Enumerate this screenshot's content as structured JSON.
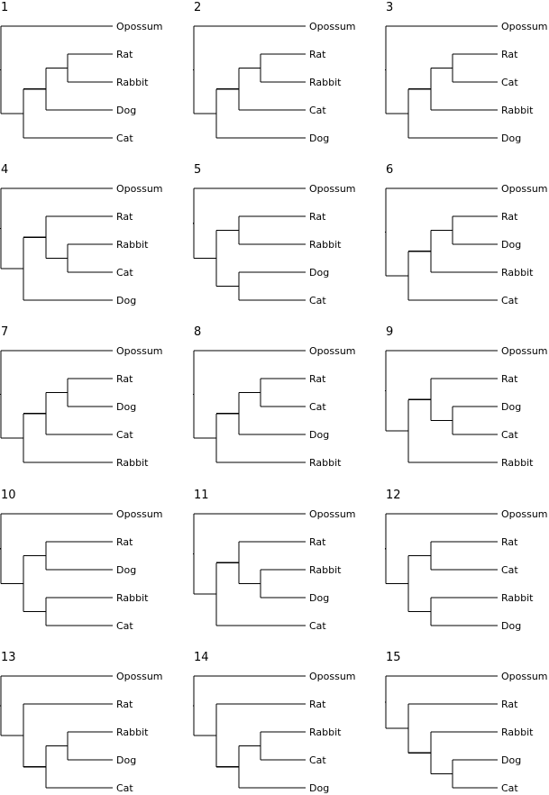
{
  "title": "",
  "colors": {
    "line": "#000000",
    "background": "#ffffff"
  },
  "leaves": [
    "Opossum",
    "Rat",
    "Rabbit",
    "Dog",
    "Cat"
  ],
  "trees": [
    {
      "number": "1",
      "newick": "(Opossum,(((Rat,Rabbit),Dog),Cat))"
    },
    {
      "number": "2",
      "newick": "(Opossum,(((Rat,Rabbit),Cat),Dog))"
    },
    {
      "number": "3",
      "newick": "(Opossum,(((Rat,Cat),Rabbit),Dog))"
    },
    {
      "number": "4",
      "newick": "(Opossum,((Rat,(Rabbit,Cat)),Dog))"
    },
    {
      "number": "5",
      "newick": "(Opossum,((Rat,Rabbit),(Dog,Cat)))"
    },
    {
      "number": "6",
      "newick": "(Opossum,(((Rat,Dog),Rabbit),Cat))"
    },
    {
      "number": "7",
      "newick": "(Opossum,(((Rat,Dog),Cat),Rabbit))"
    },
    {
      "number": "8",
      "newick": "(Opossum,(((Rat,Cat),Dog),Rabbit))"
    },
    {
      "number": "9",
      "newick": "(Opossum,((Rat,(Dog,Cat)),Rabbit))"
    },
    {
      "number": "10",
      "newick": "(Opossum,((Rat,Dog),(Rabbit,Cat)))"
    },
    {
      "number": "11",
      "newick": "(Opossum,((Rat,(Rabbit,Dog)),Cat))"
    },
    {
      "number": "12",
      "newick": "(Opossum,((Rat,Cat),(Rabbit,Dog)))"
    },
    {
      "number": "13",
      "newick": "(Opossum,(Rat,((Rabbit,Dog),Cat)))"
    },
    {
      "number": "14",
      "newick": "(Opossum,(Rat,((Rabbit,Cat),Dog)))"
    },
    {
      "number": "15",
      "newick": "(Opossum,(Rat,(Rabbit,(Dog,Cat))))"
    }
  ]
}
